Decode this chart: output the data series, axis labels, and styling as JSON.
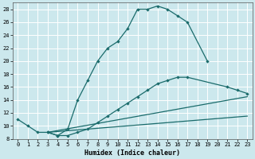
{
  "xlabel": "Humidex (Indice chaleur)",
  "background_color": "#cce8ed",
  "grid_color": "#ffffff",
  "line_color": "#1a6b6b",
  "xlim": [
    -0.5,
    23.5
  ],
  "ylim": [
    8,
    29
  ],
  "xticks": [
    0,
    1,
    2,
    3,
    4,
    5,
    6,
    7,
    8,
    9,
    10,
    11,
    12,
    13,
    14,
    15,
    16,
    17,
    18,
    19,
    20,
    21,
    22,
    23
  ],
  "yticks": [
    8,
    10,
    12,
    14,
    16,
    18,
    20,
    22,
    24,
    26,
    28
  ],
  "main_line_x": [
    0,
    1,
    2,
    3,
    4,
    5,
    6,
    7,
    8,
    9,
    10,
    11,
    12,
    13,
    14,
    15,
    16,
    17,
    19
  ],
  "main_line_y": [
    11,
    10,
    9,
    9,
    8.5,
    9.5,
    14,
    17,
    20,
    22,
    23,
    25,
    28,
    28,
    28.5,
    28,
    27,
    26,
    20
  ],
  "line2_x": [
    3,
    4,
    5,
    6,
    7,
    8,
    9,
    10,
    11,
    12,
    13,
    14,
    15,
    16,
    17,
    21,
    22,
    23
  ],
  "line2_y": [
    9,
    8.5,
    8.5,
    9,
    9.5,
    10.5,
    11.5,
    12.5,
    13.5,
    14.5,
    15.5,
    16.5,
    17,
    17.5,
    17.5,
    16,
    15.5,
    15
  ],
  "line3_x": [
    3,
    23
  ],
  "line3_y": [
    9,
    14.5
  ],
  "line4_x": [
    3,
    23
  ],
  "line4_y": [
    9,
    11.5
  ]
}
